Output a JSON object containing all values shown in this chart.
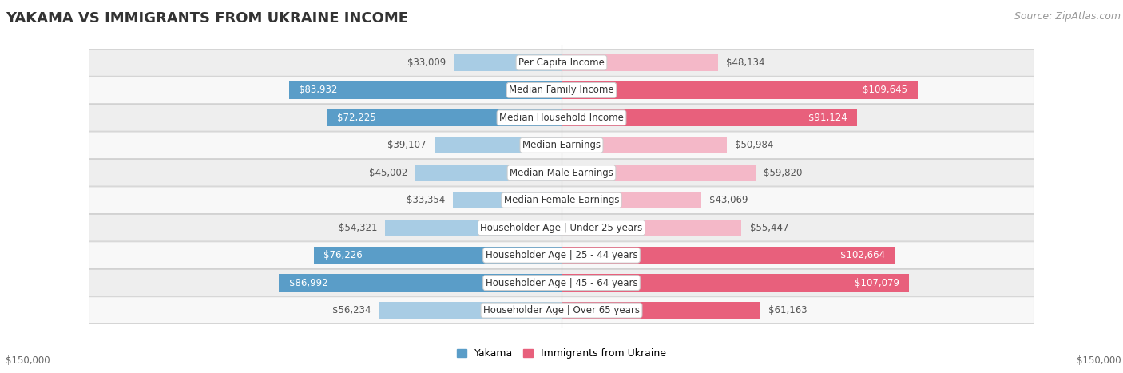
{
  "title": "YAKAMA VS IMMIGRANTS FROM UKRAINE INCOME",
  "source": "Source: ZipAtlas.com",
  "categories": [
    "Per Capita Income",
    "Median Family Income",
    "Median Household Income",
    "Median Earnings",
    "Median Male Earnings",
    "Median Female Earnings",
    "Householder Age | Under 25 years",
    "Householder Age | 25 - 44 years",
    "Householder Age | 45 - 64 years",
    "Householder Age | Over 65 years"
  ],
  "yakama_values": [
    33009,
    83932,
    72225,
    39107,
    45002,
    33354,
    54321,
    76226,
    86992,
    56234
  ],
  "ukraine_values": [
    48134,
    109645,
    91124,
    50984,
    59820,
    43069,
    55447,
    102664,
    107079,
    61163
  ],
  "yakama_labels": [
    "$33,009",
    "$83,932",
    "$72,225",
    "$39,107",
    "$45,002",
    "$33,354",
    "$54,321",
    "$76,226",
    "$86,992",
    "$56,234"
  ],
  "ukraine_labels": [
    "$48,134",
    "$109,645",
    "$91,124",
    "$50,984",
    "$59,820",
    "$43,069",
    "$55,447",
    "$102,664",
    "$107,079",
    "$61,163"
  ],
  "yakama_color_light": "#a8cce4",
  "yakama_color_dark": "#5a9dc8",
  "ukraine_color_light": "#f4b8c8",
  "ukraine_color_dark": "#e8607c",
  "row_bg_light": "#eeeeee",
  "row_bg_white": "#f8f8f8",
  "max_value": 150000,
  "axis_label_left": "$150,000",
  "axis_label_right": "$150,000",
  "legend_yakama": "Yakama",
  "legend_ukraine": "Immigrants from Ukraine",
  "title_fontsize": 13,
  "source_fontsize": 9,
  "bar_height": 0.62,
  "label_fontsize": 8.5,
  "category_fontsize": 8.5,
  "dark_threshold": 60000,
  "white_label_threshold_ukraine": 80000,
  "white_label_threshold_yakama": 60000
}
